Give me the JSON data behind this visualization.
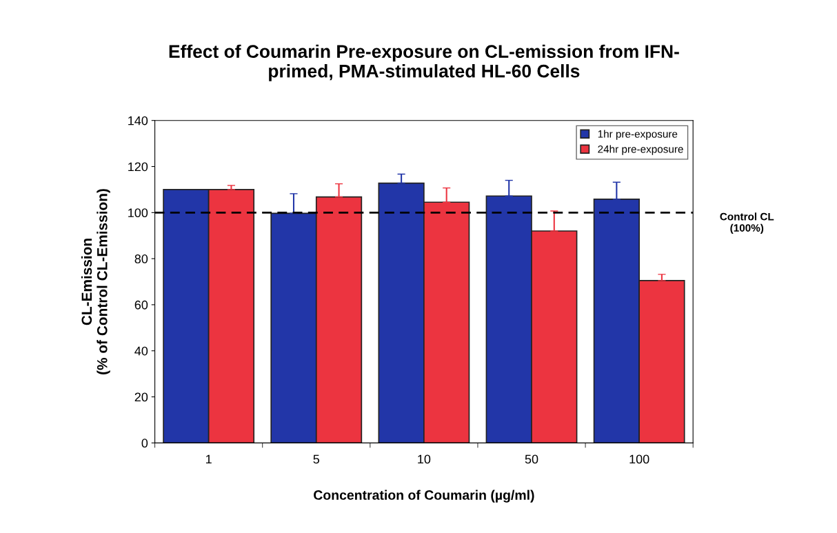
{
  "chart_data": {
    "type": "bar",
    "title": "Effect of Coumarin Pre-exposure on CL-emission from IFN-\nprimed, PMA-stimulated HL-60 Cells",
    "xlabel": "Concentration of Coumarin (µg/ml)",
    "ylabel": "CL-Emission\n(% of Control CL-Emission)",
    "categories": [
      "1",
      "5",
      "10",
      "50",
      "100"
    ],
    "series": [
      {
        "name": "1hr pre-exposure",
        "color": "#2236a8",
        "values": [
          110,
          99.7,
          112.8,
          107.2,
          105.8
        ],
        "errors": [
          null,
          [
            99.7,
            108.2
          ],
          [
            112.8,
            116.7
          ],
          [
            107.2,
            114
          ],
          [
            105.8,
            113.2
          ]
        ]
      },
      {
        "name": "24hr pre-exposure",
        "color": "#ec3440",
        "values": [
          110,
          106.8,
          104.5,
          92,
          70.5
        ],
        "errors": [
          [
            110,
            111.8
          ],
          [
            106.8,
            112.5
          ],
          [
            104.5,
            110.7
          ],
          [
            92,
            100.7
          ],
          [
            70.5,
            73.2
          ]
        ]
      }
    ],
    "ylim": [
      0,
      140
    ],
    "yticks": [
      0,
      20,
      40,
      60,
      80,
      100,
      120,
      140
    ],
    "ref_lines": [
      {
        "axis": "y",
        "value": 100,
        "label": "Control CL\n(100%)",
        "color": "#000000",
        "line_style": "dashed"
      }
    ],
    "legend": "top right",
    "grid": false
  }
}
